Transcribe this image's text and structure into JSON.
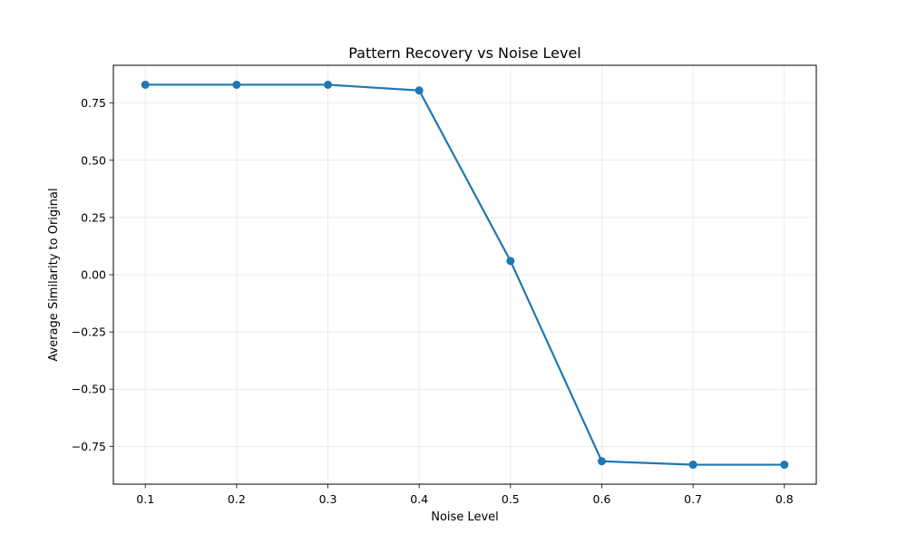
{
  "chart_data": {
    "type": "line",
    "title": "Pattern Recovery vs Noise Level",
    "xlabel": "Noise Level",
    "ylabel": "Average Similarity to Original",
    "xlim": [
      0.065,
      0.835
    ],
    "ylim": [
      -0.915,
      0.915
    ],
    "xticks": [
      0.1,
      0.2,
      0.3,
      0.4,
      0.5,
      0.6,
      0.7,
      0.8
    ],
    "xtick_labels": [
      "0.1",
      "0.2",
      "0.3",
      "0.4",
      "0.5",
      "0.6",
      "0.7",
      "0.8"
    ],
    "yticks": [
      0.75,
      0.5,
      0.25,
      0.0,
      -0.25,
      -0.5,
      -0.75
    ],
    "ytick_labels": [
      "0.75",
      "0.50",
      "0.25",
      "0.00",
      "−0.25",
      "−0.50",
      "−0.75"
    ],
    "grid": true,
    "series": [
      {
        "x": [
          0.1,
          0.2,
          0.3,
          0.4,
          0.5,
          0.6,
          0.7,
          0.8
        ],
        "y": [
          0.83,
          0.83,
          0.83,
          0.805,
          0.06,
          -0.815,
          -0.83,
          -0.83
        ],
        "color": "#1f77b4",
        "marker": "circle"
      }
    ]
  }
}
